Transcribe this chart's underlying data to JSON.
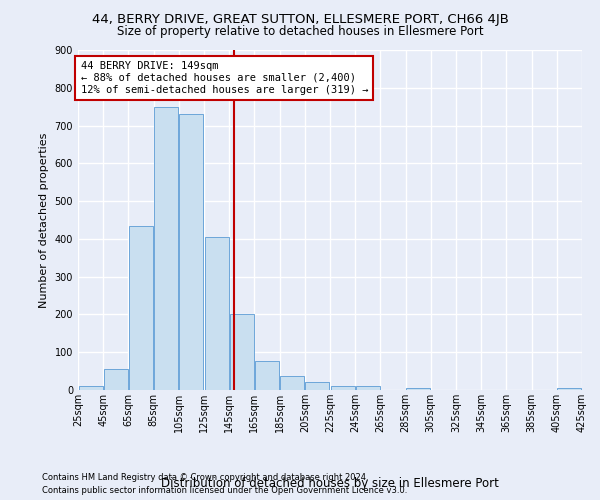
{
  "title1": "44, BERRY DRIVE, GREAT SUTTON, ELLESMERE PORT, CH66 4JB",
  "title2": "Size of property relative to detached houses in Ellesmere Port",
  "xlabel": "Distribution of detached houses by size in Ellesmere Port",
  "ylabel": "Number of detached properties",
  "footnote1": "Contains HM Land Registry data © Crown copyright and database right 2024.",
  "footnote2": "Contains public sector information licensed under the Open Government Licence v3.0.",
  "bar_color": "#c9dff0",
  "bar_edge_color": "#5b9bd5",
  "annotation_line1": "44 BERRY DRIVE: 149sqm",
  "annotation_line2": "← 88% of detached houses are smaller (2,400)",
  "annotation_line3": "12% of semi-detached houses are larger (319) →",
  "vline_x": 149,
  "vline_color": "#c00000",
  "annotation_box_edgecolor": "#c00000",
  "bins": [
    25,
    45,
    65,
    85,
    105,
    125,
    145,
    165,
    185,
    205,
    225,
    245,
    265,
    285,
    305,
    325,
    345,
    365,
    385,
    405,
    425
  ],
  "values": [
    10,
    55,
    435,
    750,
    730,
    405,
    200,
    78,
    38,
    22,
    11,
    10,
    0,
    5,
    0,
    0,
    0,
    0,
    0,
    5
  ],
  "ylim": [
    0,
    900
  ],
  "yticks": [
    0,
    100,
    200,
    300,
    400,
    500,
    600,
    700,
    800,
    900
  ],
  "background_color": "#e8edf8",
  "grid_color": "#ffffff",
  "title1_fontsize": 9.5,
  "title2_fontsize": 8.5,
  "xlabel_fontsize": 8.5,
  "ylabel_fontsize": 8,
  "tick_fontsize": 7,
  "footnote_fontsize": 6,
  "annotation_fontsize": 7.5
}
